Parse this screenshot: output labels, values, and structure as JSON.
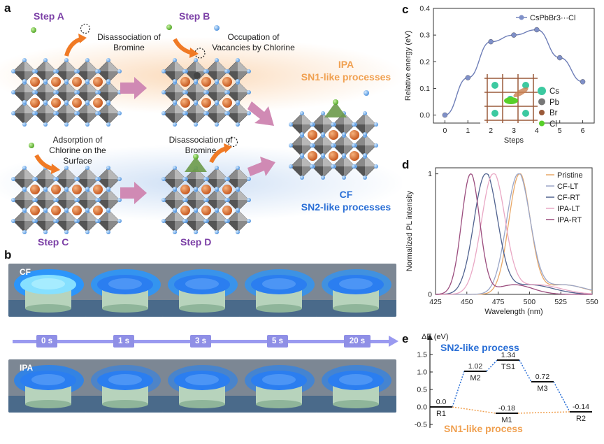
{
  "panel_a": {
    "label": "a",
    "stepA": "Step A",
    "stepA_note": "Disassociation of Bromine",
    "stepB": "Step B",
    "stepB_note": "Occupation of Vacancies by Chlorine",
    "stepC": "Step C",
    "stepC_note": "Adsorption of Chlorine on the Surface",
    "stepD": "Step D",
    "stepD_note": "Disassociation of Bromine",
    "ipa_title": "IPA",
    "ipa_process": "SN1-like processes",
    "cf_title": "CF",
    "cf_process": "SN2-like processes"
  },
  "panel_b": {
    "label": "b",
    "row1": "CF",
    "row2": "IPA",
    "times": [
      "0 s",
      "1 s",
      "3 s",
      "5 s",
      "20 s"
    ]
  },
  "panel_c": {
    "label": "c",
    "legend_inset": [
      "Cs",
      "Pb",
      "Br",
      "Cl"
    ]
  },
  "panel_d": {
    "label": "d"
  },
  "panel_e": {
    "label": "e",
    "ylabel": "ΔE (eV)",
    "sn2_label": "SN2-like process",
    "sn1_label": "SN1-like process"
  },
  "colors": {
    "purple": "#7b3fa6",
    "orange": "#f0a050",
    "blue": "#2a6fd6",
    "arrow": "#d48ab0"
  },
  "chart_data": [
    {
      "type": "line",
      "title": "",
      "xlabel": "Steps",
      "ylabel": "Relative energy (eV)",
      "x": [
        0,
        1,
        2,
        3,
        4,
        5,
        6
      ],
      "series": [
        {
          "name": "CsPbBr3···Cl",
          "values": [
            0.0,
            0.14,
            0.275,
            0.3,
            0.32,
            0.215,
            0.125
          ]
        }
      ],
      "xlim": [
        -0.5,
        6.5
      ],
      "ylim": [
        -0.03,
        0.4
      ],
      "xticks": [
        "0",
        "1",
        "2",
        "3",
        "4",
        "5",
        "6"
      ],
      "yticks": [
        "0.0",
        "0.1",
        "0.2",
        "0.3",
        "0.4"
      ]
    },
    {
      "type": "line",
      "title": "",
      "xlabel": "Wavelength (nm)",
      "ylabel": "Normalized PL intensity",
      "xlim": [
        425,
        550
      ],
      "ylim": [
        0,
        1.05
      ],
      "xticks": [
        "425",
        "450",
        "475",
        "500",
        "525",
        "550"
      ],
      "yticks": [
        "0",
        "1"
      ],
      "series": [
        {
          "name": "Pristine",
          "peak": 492,
          "fwhm": 20,
          "color": "#e8a868"
        },
        {
          "name": "CF-LT",
          "peak": 491,
          "fwhm": 22,
          "color": "#9aa6c8"
        },
        {
          "name": "CF-RT",
          "peak": 465,
          "fwhm": 22,
          "color": "#50628f"
        },
        {
          "name": "IPA-LT",
          "peak": 471,
          "fwhm": 22,
          "color": "#e9a7c4"
        },
        {
          "name": "IPA-RT",
          "peak": 453,
          "fwhm": 17,
          "color": "#9b4d7e"
        }
      ]
    },
    {
      "type": "line",
      "title": "",
      "xlabel": "",
      "ylabel": "ΔE (eV)",
      "ylim": [
        -0.6,
        1.8
      ],
      "yticks": [
        "-0.5",
        "0.0",
        "0.5",
        "1.0",
        "1.5"
      ],
      "states": [
        "R1",
        "M2",
        "TS1",
        "M3",
        "R2",
        "M1"
      ],
      "series": [
        {
          "name": "SN2-like process",
          "labels": [
            "R1",
            "M2",
            "TS1",
            "M3",
            "R2"
          ],
          "values": [
            0.0,
            1.02,
            1.34,
            0.72,
            -0.14
          ]
        },
        {
          "name": "SN1-like process",
          "labels": [
            "R1",
            "M1",
            "R2"
          ],
          "values": [
            0.0,
            -0.18,
            -0.14
          ]
        }
      ],
      "value_labels": [
        "0.0",
        "1.02",
        "1.34",
        "0.72",
        "-0.14",
        "-0.18"
      ]
    }
  ]
}
